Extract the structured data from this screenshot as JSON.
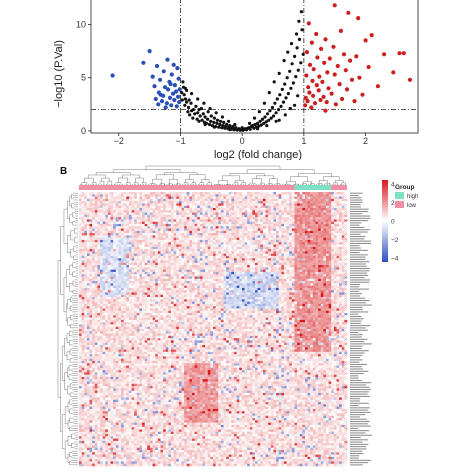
{
  "chart_data": [
    {
      "type": "scatter",
      "panel_label": "",
      "xlabel": "log2 (fold change)",
      "ylabel": "−log10 (P.Val)",
      "xlim": [
        -2.45,
        2.85
      ],
      "ylim": [
        -0.2,
        12.3
      ],
      "x_ticks": [
        "−2",
        "−1",
        "0",
        "1",
        "2"
      ],
      "x_tick_values": [
        -2,
        -1,
        0,
        1,
        2
      ],
      "y_ticks": [
        "0",
        "5",
        "10"
      ],
      "y_tick_values": [
        0,
        5,
        10
      ],
      "grid": false,
      "threshold_lines": {
        "vertical": [
          -1,
          1
        ],
        "horizontal": [
          2
        ]
      },
      "colors": {
        "down": "#2b4fb8",
        "up": "#cc1f1f",
        "ns": "#111111"
      },
      "series": [
        {
          "group": "down",
          "color": "#2b4fb8",
          "points": [
            [
              -2.1,
              5.2
            ],
            [
              -1.6,
              6.4
            ],
            [
              -1.5,
              7.5
            ],
            [
              -1.45,
              5.1
            ],
            [
              -1.42,
              4.2
            ],
            [
              -1.38,
              6.1
            ],
            [
              -1.35,
              3.6
            ],
            [
              -1.33,
              4.8
            ],
            [
              -1.3,
              2.8
            ],
            [
              -1.28,
              3.3
            ],
            [
              -1.27,
              5.6
            ],
            [
              -1.25,
              4.1
            ],
            [
              -1.22,
              2.6
            ],
            [
              -1.2,
              3.9
            ],
            [
              -1.18,
              4.6
            ],
            [
              -1.17,
              3.1
            ],
            [
              -1.15,
              2.4
            ],
            [
              -1.14,
              5.3
            ],
            [
              -1.12,
              3.5
            ],
            [
              -1.1,
              2.9
            ],
            [
              -1.09,
              4.3
            ],
            [
              -1.07,
              3.7
            ],
            [
              -1.06,
              2.3
            ],
            [
              -1.05,
              5.9
            ],
            [
              -1.04,
              3.2
            ],
            [
              -1.03,
              4.9
            ],
            [
              -1.02,
              2.7
            ],
            [
              -1.01,
              3.9
            ],
            [
              -1.4,
              3.0
            ],
            [
              -1.24,
              2.2
            ],
            [
              -1.21,
              6.7
            ],
            [
              -1.36,
              2.5
            ],
            [
              -1.11,
              6.2
            ],
            [
              -1.32,
              3.4
            ],
            [
              -1.16,
              4.4
            ]
          ]
        },
        {
          "group": "up",
          "color": "#cc1f1f",
          "points": [
            [
              1.02,
              2.4
            ],
            [
              1.03,
              3.1
            ],
            [
              1.04,
              5.2
            ],
            [
              1.05,
              7.4
            ],
            [
              1.06,
              2.8
            ],
            [
              1.07,
              4.1
            ],
            [
              1.08,
              10.1
            ],
            [
              1.09,
              3.6
            ],
            [
              1.1,
              6.2
            ],
            [
              1.12,
              2.2
            ],
            [
              1.13,
              8.3
            ],
            [
              1.14,
              4.7
            ],
            [
              1.15,
              3.3
            ],
            [
              1.16,
              5.8
            ],
            [
              1.18,
              2.6
            ],
            [
              1.2,
              9.1
            ],
            [
              1.21,
              4.3
            ],
            [
              1.22,
              6.9
            ],
            [
              1.24,
              3.8
            ],
            [
              1.25,
              5.1
            ],
            [
              1.27,
              2.9
            ],
            [
              1.28,
              7.7
            ],
            [
              1.3,
              4.6
            ],
            [
              1.32,
              3.2
            ],
            [
              1.33,
              6.4
            ],
            [
              1.35,
              8.6
            ],
            [
              1.37,
              2.7
            ],
            [
              1.38,
              5.5
            ],
            [
              1.4,
              4.0
            ],
            [
              1.42,
              6.8
            ],
            [
              1.45,
              3.5
            ],
            [
              1.48,
              7.9
            ],
            [
              1.5,
              5.3
            ],
            [
              1.52,
              2.5
            ],
            [
              1.55,
              6.1
            ],
            [
              1.58,
              4.4
            ],
            [
              1.6,
              9.4
            ],
            [
              1.62,
              3.0
            ],
            [
              1.65,
              7.2
            ],
            [
              1.68,
              5.7
            ],
            [
              1.7,
              3.9
            ],
            [
              1.72,
              11.1
            ],
            [
              1.75,
              6.6
            ],
            [
              1.78,
              4.8
            ],
            [
              1.82,
              2.8
            ],
            [
              1.85,
              7.0
            ],
            [
              1.88,
              10.6
            ],
            [
              1.9,
              5.0
            ],
            [
              1.95,
              3.4
            ],
            [
              2.0,
              8.5
            ],
            [
              2.05,
              6.0
            ],
            [
              2.1,
              9.0
            ],
            [
              2.2,
              4.2
            ],
            [
              2.3,
              7.2
            ],
            [
              2.45,
              5.5
            ],
            [
              2.55,
              7.3
            ],
            [
              2.62,
              7.3
            ],
            [
              2.72,
              4.8
            ],
            [
              1.5,
              11.8
            ],
            [
              1.35,
              1.9
            ]
          ]
        },
        {
          "group": "ns",
          "color": "#111111",
          "points": [
            [
              -1.02,
              3.2
            ],
            [
              -0.98,
              3.6
            ],
            [
              -0.97,
              2.9
            ],
            [
              -0.95,
              4.1
            ],
            [
              -0.93,
              2.4
            ],
            [
              -0.92,
              3.0
            ],
            [
              -0.9,
              2.7
            ],
            [
              -0.88,
              1.8
            ],
            [
              -0.87,
              2.2
            ],
            [
              -0.85,
              1.5
            ],
            [
              -0.83,
              2.6
            ],
            [
              -0.82,
              1.9
            ],
            [
              -0.8,
              1.2
            ],
            [
              -0.79,
              2.0
            ],
            [
              -0.77,
              1.6
            ],
            [
              -0.75,
              2.3
            ],
            [
              -0.73,
              1.1
            ],
            [
              -0.72,
              1.7
            ],
            [
              -0.7,
              0.9
            ],
            [
              -0.68,
              1.4
            ],
            [
              -0.66,
              2.1
            ],
            [
              -0.65,
              1.0
            ],
            [
              -0.63,
              1.6
            ],
            [
              -0.61,
              0.8
            ],
            [
              -0.6,
              1.3
            ],
            [
              -0.58,
              0.7
            ],
            [
              -0.56,
              1.1
            ],
            [
              -0.55,
              1.8
            ],
            [
              -0.53,
              0.6
            ],
            [
              -0.51,
              0.9
            ],
            [
              -0.5,
              1.4
            ],
            [
              -0.48,
              0.5
            ],
            [
              -0.46,
              0.8
            ],
            [
              -0.45,
              1.2
            ],
            [
              -0.43,
              0.4
            ],
            [
              -0.41,
              0.7
            ],
            [
              -0.4,
              1.0
            ],
            [
              -0.38,
              0.35
            ],
            [
              -0.36,
              0.6
            ],
            [
              -0.35,
              0.9
            ],
            [
              -0.33,
              0.3
            ],
            [
              -0.31,
              0.5
            ],
            [
              -0.3,
              0.8
            ],
            [
              -0.28,
              0.25
            ],
            [
              -0.26,
              0.45
            ],
            [
              -0.25,
              0.6
            ],
            [
              -0.23,
              0.2
            ],
            [
              -0.21,
              0.35
            ],
            [
              -0.2,
              0.5
            ],
            [
              -0.18,
              0.15
            ],
            [
              -0.16,
              0.3
            ],
            [
              -0.15,
              0.4
            ],
            [
              -0.13,
              0.1
            ],
            [
              -0.11,
              0.2
            ],
            [
              -0.1,
              0.3
            ],
            [
              -0.08,
              0.08
            ],
            [
              -0.06,
              0.15
            ],
            [
              -0.05,
              0.2
            ],
            [
              -0.03,
              0.05
            ],
            [
              -0.01,
              0.1
            ],
            [
              0.01,
              0.06
            ],
            [
              0.03,
              0.12
            ],
            [
              0.05,
              0.2
            ],
            [
              0.07,
              0.1
            ],
            [
              0.09,
              0.25
            ],
            [
              0.11,
              0.3
            ],
            [
              0.13,
              0.15
            ],
            [
              0.15,
              0.4
            ],
            [
              0.17,
              0.5
            ],
            [
              0.19,
              0.25
            ],
            [
              0.21,
              0.6
            ],
            [
              0.23,
              0.35
            ],
            [
              0.25,
              0.7
            ],
            [
              0.27,
              0.45
            ],
            [
              0.29,
              0.9
            ],
            [
              0.31,
              0.55
            ],
            [
              0.33,
              1.1
            ],
            [
              0.35,
              0.7
            ],
            [
              0.37,
              1.3
            ],
            [
              0.39,
              0.85
            ],
            [
              0.41,
              1.6
            ],
            [
              0.43,
              1.0
            ],
            [
              0.45,
              1.9
            ],
            [
              0.47,
              1.2
            ],
            [
              0.49,
              2.2
            ],
            [
              0.51,
              1.4
            ],
            [
              0.53,
              2.6
            ],
            [
              0.55,
              1.7
            ],
            [
              0.57,
              3.0
            ],
            [
              0.59,
              2.0
            ],
            [
              0.61,
              3.4
            ],
            [
              0.63,
              2.3
            ],
            [
              0.65,
              3.9
            ],
            [
              0.67,
              2.7
            ],
            [
              0.69,
              4.4
            ],
            [
              0.71,
              3.1
            ],
            [
              0.73,
              5.0
            ],
            [
              0.75,
              3.5
            ],
            [
              0.77,
              5.6
            ],
            [
              0.79,
              4.0
            ],
            [
              0.81,
              6.3
            ],
            [
              0.83,
              4.5
            ],
            [
              0.85,
              7.0
            ],
            [
              0.87,
              5.1
            ],
            [
              0.89,
              7.8
            ],
            [
              0.91,
              5.7
            ],
            [
              0.93,
              8.6
            ],
            [
              0.95,
              6.4
            ],
            [
              0.97,
              9.5
            ],
            [
              0.99,
              7.2
            ],
            [
              0.92,
              10.3
            ],
            [
              0.96,
              11.2
            ],
            [
              0.88,
              9.1
            ],
            [
              0.8,
              8.2
            ],
            [
              0.74,
              7.4
            ],
            [
              0.68,
              6.6
            ],
            [
              0.6,
              5.4
            ],
            [
              0.52,
              4.6
            ],
            [
              0.44,
              3.6
            ],
            [
              0.36,
              2.6
            ],
            [
              0.28,
              1.8
            ],
            [
              0.2,
              1.2
            ],
            [
              0.12,
              0.7
            ],
            [
              -0.12,
              0.6
            ],
            [
              -0.22,
              0.9
            ],
            [
              -0.32,
              1.3
            ],
            [
              -0.42,
              1.7
            ],
            [
              -0.52,
              2.1
            ],
            [
              -0.62,
              2.6
            ],
            [
              -0.72,
              3.0
            ],
            [
              -0.82,
              3.5
            ],
            [
              -0.92,
              4.0
            ],
            [
              -0.96,
              4.6
            ],
            [
              -0.9,
              3.8
            ],
            [
              0.6,
              1.0
            ],
            [
              0.7,
              1.5
            ],
            [
              0.4,
              0.5
            ],
            [
              -0.6,
              0.6
            ],
            [
              -0.45,
              0.35
            ],
            [
              0.25,
              0.2
            ],
            [
              -0.2,
              0.12
            ],
            [
              0.0,
              0.3
            ],
            [
              0.85,
              2.4
            ],
            [
              0.9,
              3.3
            ],
            [
              -0.86,
              2.9
            ],
            [
              -0.94,
              3.4
            ],
            [
              0.78,
              2.1
            ],
            [
              0.55,
              0.9
            ],
            [
              -0.7,
              2.0
            ]
          ]
        }
      ]
    },
    {
      "type": "heatmap",
      "panel_label": "B",
      "legend": {
        "scale_ticks": [
          "4",
          "2",
          "0",
          "−2",
          "−4"
        ],
        "scale_colors": [
          "#d7191c",
          "#ffffff",
          "#2c4fc1"
        ],
        "group_title": "Group",
        "groups": [
          {
            "label": "high",
            "color": "#7fe0c6"
          },
          {
            "label": "low",
            "color": "#f08fa5"
          }
        ]
      },
      "n_rows": 120,
      "n_cols": 102,
      "column_groups": {
        "low_columns": 82,
        "high_columns": 14,
        "trailing_low_columns": 6
      }
    }
  ]
}
